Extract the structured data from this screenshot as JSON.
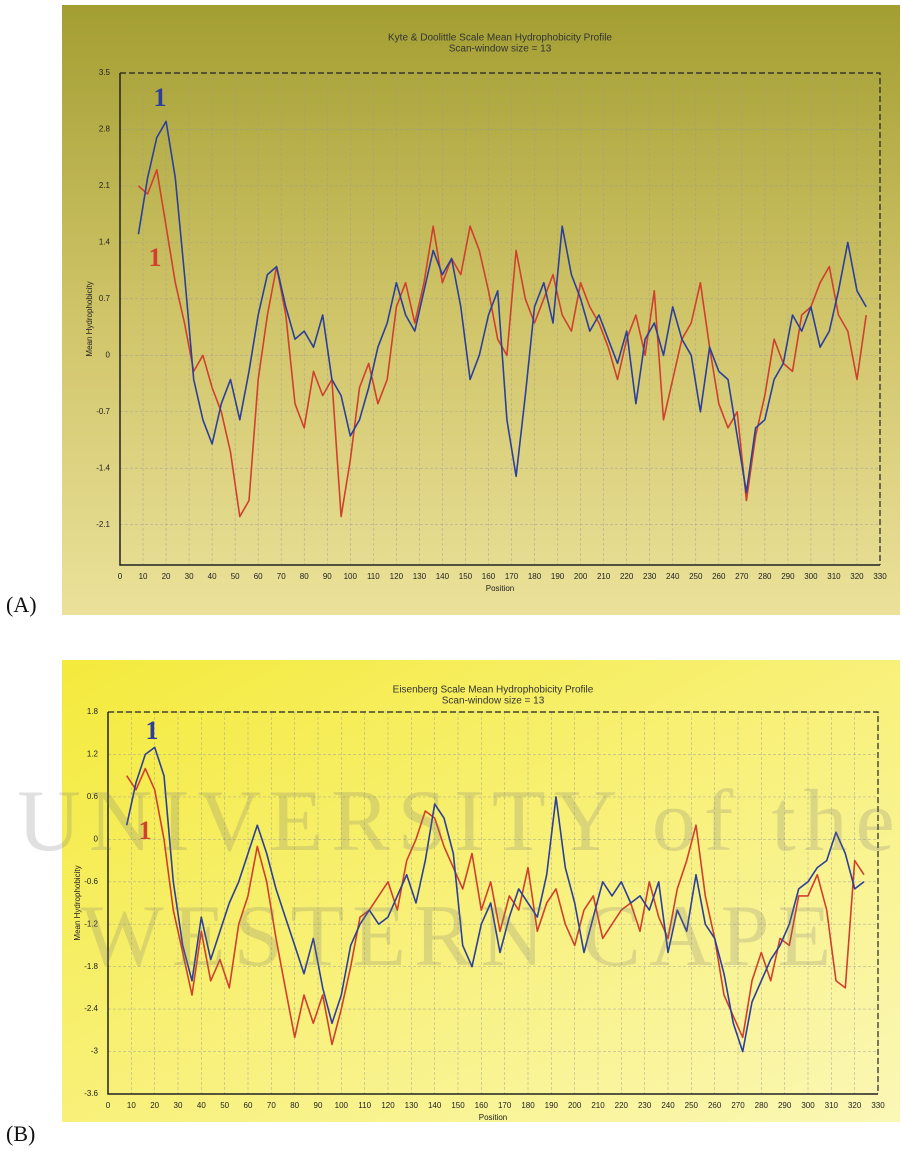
{
  "panel_labels": [
    "(A)",
    "(B)"
  ],
  "watermark": [
    "UNIVERSITY of the",
    "WESTERN CAPE"
  ],
  "chart_data": [
    {
      "type": "line",
      "title": "Kyte & Doolittle Scale Mean Hydrophobicity Profile",
      "subtitle": "Scan-window size = 13",
      "x_label": "Position",
      "y_label": "Mean Hydrophobicity",
      "xlim": [
        0,
        330
      ],
      "xticks": [
        0,
        10,
        20,
        30,
        40,
        50,
        60,
        70,
        80,
        90,
        100,
        110,
        120,
        130,
        140,
        150,
        160,
        170,
        180,
        190,
        200,
        210,
        220,
        230,
        240,
        250,
        260,
        270,
        280,
        290,
        300,
        310,
        320,
        330
      ],
      "ylim": [
        -2.6,
        3.5
      ],
      "yticks": [
        -2.1,
        -1.4,
        -0.7,
        0,
        0.7,
        1.4,
        2.1,
        2.8,
        3.5
      ],
      "grid": true,
      "x": [
        8,
        12,
        16,
        20,
        24,
        28,
        32,
        36,
        40,
        44,
        48,
        52,
        56,
        60,
        64,
        68,
        72,
        76,
        80,
        84,
        88,
        92,
        96,
        100,
        104,
        108,
        112,
        116,
        120,
        124,
        128,
        132,
        136,
        140,
        144,
        148,
        152,
        156,
        160,
        164,
        168,
        172,
        176,
        180,
        184,
        188,
        192,
        196,
        200,
        204,
        208,
        212,
        216,
        220,
        224,
        228,
        232,
        236,
        240,
        244,
        248,
        252,
        256,
        260,
        264,
        268,
        272,
        276,
        280,
        284,
        288,
        292,
        296,
        300,
        304,
        308,
        312,
        316,
        320,
        324
      ],
      "series": [
        {
          "color": "#d0402e",
          "values": [
            2.1,
            2.0,
            2.3,
            1.6,
            0.9,
            0.4,
            -0.2,
            0.0,
            -0.4,
            -0.7,
            -1.2,
            -2.0,
            -1.8,
            -0.3,
            0.5,
            1.1,
            0.5,
            -0.6,
            -0.9,
            -0.2,
            -0.5,
            -0.3,
            -2.0,
            -1.3,
            -0.4,
            -0.1,
            -0.6,
            -0.3,
            0.6,
            0.9,
            0.4,
            0.9,
            1.6,
            0.9,
            1.2,
            1.0,
            1.6,
            1.3,
            0.8,
            0.2,
            0.0,
            1.3,
            0.7,
            0.4,
            0.7,
            1.0,
            0.5,
            0.3,
            0.9,
            0.6,
            0.4,
            0.1,
            -0.3,
            0.2,
            0.5,
            0.0,
            0.8,
            -0.8,
            -0.3,
            0.2,
            0.4,
            0.9,
            0.1,
            -0.6,
            -0.9,
            -0.7,
            -1.8,
            -1.0,
            -0.5,
            0.2,
            -0.1,
            -0.2,
            0.5,
            0.6,
            0.9,
            1.1,
            0.5,
            0.3,
            -0.3,
            0.5
          ]
        },
        {
          "color": "#2c3f9a",
          "values": [
            1.5,
            2.2,
            2.7,
            2.9,
            2.2,
            1.0,
            -0.3,
            -0.8,
            -1.1,
            -0.6,
            -0.3,
            -0.8,
            -0.2,
            0.5,
            1.0,
            1.1,
            0.6,
            0.2,
            0.3,
            0.1,
            0.5,
            -0.3,
            -0.5,
            -1.0,
            -0.8,
            -0.4,
            0.1,
            0.4,
            0.9,
            0.5,
            0.3,
            0.8,
            1.3,
            1.0,
            1.2,
            0.6,
            -0.3,
            0.0,
            0.5,
            0.8,
            -0.8,
            -1.5,
            -0.5,
            0.6,
            0.9,
            0.4,
            1.6,
            1.0,
            0.7,
            0.3,
            0.5,
            0.2,
            -0.1,
            0.3,
            -0.6,
            0.2,
            0.4,
            0.0,
            0.6,
            0.2,
            0.0,
            -0.7,
            0.1,
            -0.2,
            -0.3,
            -1.0,
            -1.7,
            -0.9,
            -0.8,
            -0.3,
            -0.1,
            0.5,
            0.3,
            0.6,
            0.1,
            0.3,
            0.8,
            1.4,
            0.8,
            0.6
          ]
        }
      ],
      "annotations": [
        {
          "text": "1",
          "color": "#2c3f9a"
        },
        {
          "text": "1",
          "color": "#d0402e"
        }
      ]
    },
    {
      "type": "line",
      "title": "Eisenberg Scale Mean Hydrophobicity Profile",
      "subtitle": "Scan-window size = 13",
      "x_label": "Position",
      "y_label": "Mean Hydrophobicity",
      "xlim": [
        0,
        330
      ],
      "xticks": [
        0,
        10,
        20,
        30,
        40,
        50,
        60,
        70,
        80,
        90,
        100,
        110,
        120,
        130,
        140,
        150,
        160,
        170,
        180,
        190,
        200,
        210,
        220,
        230,
        240,
        250,
        260,
        270,
        280,
        290,
        300,
        310,
        320,
        330
      ],
      "ylim": [
        -3.6,
        1.8
      ],
      "yticks": [
        -3.6,
        -3,
        -2.4,
        -1.8,
        -1.2,
        -0.6,
        0,
        0.6,
        1.2,
        1.8
      ],
      "grid": true,
      "x": [
        8,
        12,
        16,
        20,
        24,
        28,
        32,
        36,
        40,
        44,
        48,
        52,
        56,
        60,
        64,
        68,
        72,
        76,
        80,
        84,
        88,
        92,
        96,
        100,
        104,
        108,
        112,
        116,
        120,
        124,
        128,
        132,
        136,
        140,
        144,
        148,
        152,
        156,
        160,
        164,
        168,
        172,
        176,
        180,
        184,
        188,
        192,
        196,
        200,
        204,
        208,
        212,
        216,
        220,
        224,
        228,
        232,
        236,
        240,
        244,
        248,
        252,
        256,
        260,
        264,
        268,
        272,
        276,
        280,
        284,
        288,
        292,
        296,
        300,
        304,
        308,
        312,
        316,
        320,
        324
      ],
      "series": [
        {
          "color": "#d0402e",
          "values": [
            0.9,
            0.7,
            1.0,
            0.7,
            0.0,
            -1.0,
            -1.6,
            -2.2,
            -1.3,
            -2.0,
            -1.7,
            -2.1,
            -1.2,
            -0.8,
            -0.1,
            -0.6,
            -1.4,
            -2.1,
            -2.8,
            -2.2,
            -2.6,
            -2.2,
            -2.9,
            -2.4,
            -1.8,
            -1.1,
            -1.0,
            -0.8,
            -0.6,
            -1.0,
            -0.3,
            0.0,
            0.4,
            0.3,
            -0.1,
            -0.4,
            -0.7,
            -0.2,
            -1.0,
            -0.6,
            -1.3,
            -0.8,
            -1.0,
            -0.4,
            -1.3,
            -0.9,
            -0.7,
            -1.2,
            -1.5,
            -1.0,
            -0.8,
            -1.4,
            -1.2,
            -1.0,
            -0.9,
            -1.3,
            -0.6,
            -1.1,
            -1.4,
            -0.7,
            -0.3,
            0.2,
            -0.8,
            -1.4,
            -2.2,
            -2.5,
            -2.8,
            -2.0,
            -1.6,
            -2.0,
            -1.4,
            -1.5,
            -0.8,
            -0.8,
            -0.5,
            -1.0,
            -2.0,
            -2.1,
            -0.3,
            -0.5
          ]
        },
        {
          "color": "#2c3f9a",
          "values": [
            0.2,
            0.8,
            1.2,
            1.3,
            0.9,
            -0.6,
            -1.5,
            -2.0,
            -1.1,
            -1.7,
            -1.3,
            -0.9,
            -0.6,
            -0.2,
            0.2,
            -0.2,
            -0.7,
            -1.1,
            -1.5,
            -1.9,
            -1.4,
            -2.1,
            -2.6,
            -2.2,
            -1.5,
            -1.2,
            -1.0,
            -1.2,
            -1.1,
            -0.8,
            -0.5,
            -0.9,
            -0.3,
            0.5,
            0.3,
            -0.2,
            -1.5,
            -1.8,
            -1.2,
            -0.9,
            -1.6,
            -1.1,
            -0.7,
            -0.9,
            -1.1,
            -0.5,
            0.6,
            -0.4,
            -0.9,
            -1.6,
            -1.1,
            -0.6,
            -0.8,
            -0.6,
            -0.9,
            -0.8,
            -1.0,
            -0.6,
            -1.6,
            -1.0,
            -1.3,
            -0.5,
            -1.2,
            -1.4,
            -1.9,
            -2.6,
            -3.0,
            -2.3,
            -2.0,
            -1.7,
            -1.5,
            -1.2,
            -0.7,
            -0.6,
            -0.4,
            -0.3,
            0.1,
            -0.2,
            -0.7,
            -0.6
          ]
        }
      ],
      "annotations": [
        {
          "text": "1",
          "color": "#2c3f9a"
        },
        {
          "text": "1",
          "color": "#d0402e"
        }
      ]
    }
  ]
}
